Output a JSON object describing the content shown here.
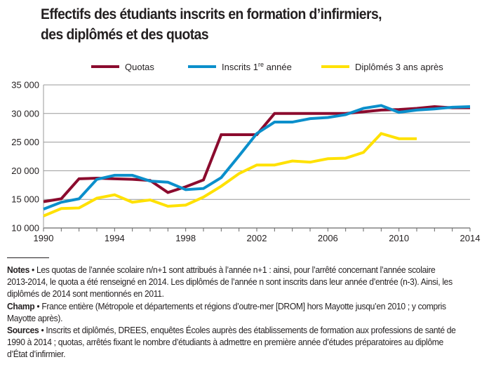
{
  "title_line1": "Effectifs des étudiants inscrits en formation d’infirmiers,",
  "title_line2": "des diplômés et des quotas",
  "chart_data": {
    "type": "line",
    "title": "Effectifs des étudiants inscrits en formation d’infirmiers, des diplômés et des quotas",
    "xlabel": "",
    "ylabel": "",
    "x": [
      1990,
      1991,
      1992,
      1993,
      1994,
      1995,
      1996,
      1997,
      1998,
      1999,
      2000,
      2001,
      2002,
      2003,
      2004,
      2005,
      2006,
      2007,
      2008,
      2009,
      2010,
      2011,
      2012,
      2013,
      2014
    ],
    "xlim": [
      1990,
      2014
    ],
    "ylim": [
      10000,
      35000
    ],
    "x_ticks": [
      "1990",
      "1994",
      "1998",
      "2002",
      "2006",
      "2010",
      "2014"
    ],
    "y_ticks": [
      "10 000",
      "15 000",
      "20 000",
      "25 000",
      "30 000",
      "35 000"
    ],
    "grid": true,
    "legend_position": "top",
    "series": [
      {
        "name": "Quotas",
        "name_sup": "",
        "name_suffix": "",
        "color": "#8b0b2e",
        "values": [
          14600,
          15100,
          18600,
          18700,
          18600,
          18500,
          18300,
          16200,
          17200,
          18400,
          26300,
          26300,
          26300,
          30000,
          30000,
          30000,
          30000,
          30000,
          30300,
          30600,
          30700,
          30900,
          31200,
          31000,
          31000
        ]
      },
      {
        "name": "Inscrits 1",
        "name_sup": "re",
        "name_suffix": " année",
        "color": "#0b8fcb",
        "values": [
          13300,
          14500,
          15100,
          18500,
          19200,
          19200,
          18200,
          18000,
          16700,
          16900,
          18800,
          22600,
          26500,
          28500,
          28500,
          29100,
          29300,
          29800,
          30900,
          31400,
          30200,
          30600,
          30800,
          31100,
          31200
        ]
      },
      {
        "name": "Diplômés 3 ans après",
        "name_sup": "",
        "name_suffix": "",
        "color": "#ffe100",
        "values": [
          12100,
          13400,
          13500,
          15200,
          15800,
          14500,
          14900,
          13800,
          14000,
          15400,
          17300,
          19500,
          21000,
          21000,
          21700,
          21500,
          22100,
          22200,
          23200,
          26500,
          25600,
          25600,
          null,
          null,
          null
        ]
      }
    ]
  },
  "notes": {
    "notes_label": "Notes",
    "notes_text": " • Les quotas de l’année scolaire n/n+1 sont attribués à l’année n+1 : ainsi, pour l’arrêté concernant l’année scolaire 2013-2014, le quota a été renseigné en 2014. Les diplômés de l’année n sont inscrits dans leur année d’entrée (n-3). Ainsi, les diplômés de 2014 sont mentionnés en 2011.",
    "champ_label": "Champ",
    "champ_text": " • France entière (Métropole et départements et régions d’outre-mer [DROM] hors Mayotte jusqu’en 2010 ; y compris Mayotte après).",
    "sources_label": "Sources",
    "sources_text": " • Inscrits et diplômés, DREES, enquêtes Écoles auprès des établissements de formation aux professions de santé de 1990 à 2014 ; quotas, arrêtés fixant le nombre d’étudiants à admettre en première année d’études préparatoires au diplôme d’État d’infirmier."
  }
}
